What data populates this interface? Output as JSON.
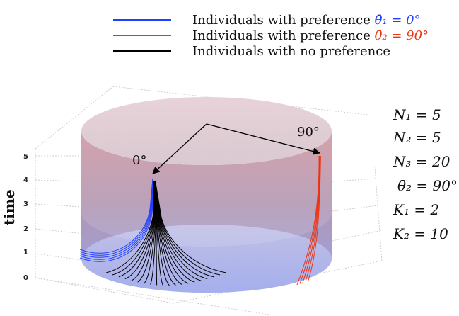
{
  "legend": {
    "items": [
      {
        "text": "Individuals with preference ",
        "math": "θ̄₁ = 0°",
        "color": "#1f3fff"
      },
      {
        "text": "Individuals with preference ",
        "math": "θ̄₂ = 90°",
        "color": "#ee3311"
      },
      {
        "text": "Individuals with no preference",
        "math": "",
        "color": "#000000"
      }
    ]
  },
  "params": [
    "N₁ = 5",
    "N₂ = 5",
    "N₃ = 20",
    "θ̄₂ = 90°",
    "K₁ = 2",
    "K₂ = 10"
  ],
  "axis": {
    "title": "time",
    "ticks": [
      "0",
      "1",
      "2",
      "3",
      "4",
      "5"
    ]
  },
  "angles": {
    "zero": "0°",
    "ninety": "90°"
  },
  "colors": {
    "blue": "#1f3fff",
    "red": "#ee3311",
    "black": "#000000"
  }
}
